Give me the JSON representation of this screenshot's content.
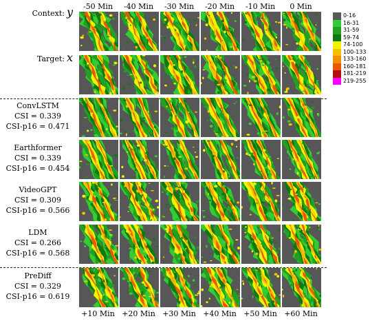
{
  "top_times": [
    "-50 Min",
    "-40 Min",
    "-30 Min",
    "-20 Min",
    "-10 Min",
    "0 Min"
  ],
  "bottom_times": [
    "+10 Min",
    "+20 Min",
    "+30 Min",
    "+40 Min",
    "+50 Min",
    "+60 Min"
  ],
  "context": {
    "label": "Context:",
    "symbol": "y"
  },
  "target": {
    "label": "Target:",
    "symbol": "x"
  },
  "models": [
    {
      "name": "ConvLSTM",
      "csi": "CSI = 0.339",
      "csi_p16": "CSI-p16 = 0.471"
    },
    {
      "name": "Earthformer",
      "csi": "CSI = 0.339",
      "csi_p16": "CSI-p16 = 0.454"
    },
    {
      "name": "VideoGPT",
      "csi": "CSI = 0.309",
      "csi_p16": "CSI-p16 = 0.566"
    },
    {
      "name": "LDM",
      "csi": "CSI = 0.266",
      "csi_p16": "CSI-p16 = 0.568"
    },
    {
      "name": "PreDiff",
      "csi": "CSI = 0.329",
      "csi_p16": "CSI-p16 = 0.619"
    }
  ],
  "legend": [
    {
      "label": "0-16",
      "color": "#595959"
    },
    {
      "label": "16-31",
      "color": "#33cc33"
    },
    {
      "label": "31-59",
      "color": "#22a022"
    },
    {
      "label": "59-74",
      "color": "#117711"
    },
    {
      "label": "74-100",
      "color": "#f2f200"
    },
    {
      "label": "100-133",
      "color": "#f2c000"
    },
    {
      "label": "133-160",
      "color": "#f09000"
    },
    {
      "label": "160-181",
      "color": "#e85a00"
    },
    {
      "label": "181-219",
      "color": "#b01010"
    },
    {
      "label": "219-255",
      "color": "#ff00ff"
    }
  ]
}
